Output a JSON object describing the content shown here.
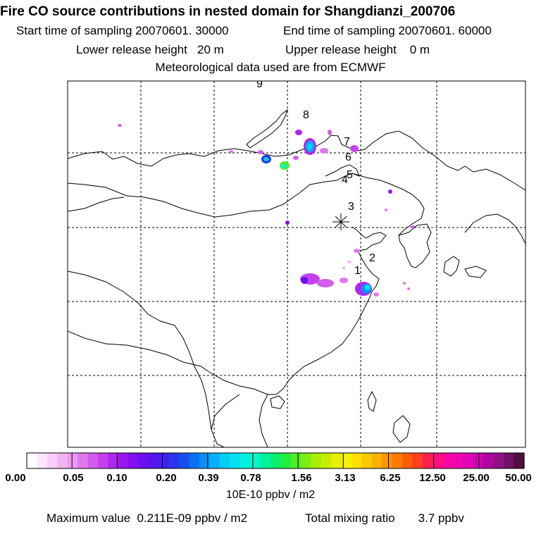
{
  "header": {
    "title": "Fire CO source contributions in nested domain for Shangdianzi_200706",
    "start_time": "Start time of sampling 20070601. 30000",
    "end_time": "End time of sampling 20070601. 60000",
    "lower_release": "Lower release height   20 m",
    "upper_release": "Upper release height    0 m",
    "met_data": "Meteorological data used are from ECMWF"
  },
  "map": {
    "receptor_marker": "×",
    "trajectory_labels": [
      "1",
      "2",
      "3",
      "4",
      "5",
      "6",
      "7",
      "8",
      "9"
    ]
  },
  "colorbar": {
    "ticks": [
      "0.00",
      "0.05",
      "0.10",
      "0.20",
      "0.39",
      "0.78",
      "1.56",
      "3.13",
      "6.25",
      "12.50",
      "25.00",
      "50.00"
    ],
    "units": "10E-10 ppbv / m2",
    "colors": [
      "#ffffff",
      "#fde6fd",
      "#f8cdf8",
      "#f3b3f3",
      "#ec9cf2",
      "#e079f0",
      "#d25cee",
      "#c641ee",
      "#b026ee",
      "#9a16ee",
      "#8010ee",
      "#6a10ee",
      "#5515ee",
      "#4020ee",
      "#2a35ee",
      "#1550ee",
      "#0a70f2",
      "#0890f5",
      "#06b0f7",
      "#05ccf7",
      "#05e0f0",
      "#05f0e0",
      "#05f5c5",
      "#05f09a",
      "#08ee70",
      "#20ee40",
      "#4fee20",
      "#7cee10",
      "#a8ee08",
      "#c8ee05",
      "#e6f005",
      "#f6f005",
      "#fee005",
      "#fec805",
      "#feb005",
      "#fe9505",
      "#fe7a05",
      "#fe5c05",
      "#fe4020",
      "#fe2050",
      "#fe1080",
      "#fa05a0",
      "#f005b0",
      "#e005b5",
      "#cc05b0",
      "#b005a0",
      "#901085",
      "#701066",
      "#501040"
    ]
  },
  "footer": {
    "max_value": "Maximum value  0.211E-09 ppbv / m2",
    "total_mixing": "Total mixing ratio       3.7 ppbv"
  }
}
